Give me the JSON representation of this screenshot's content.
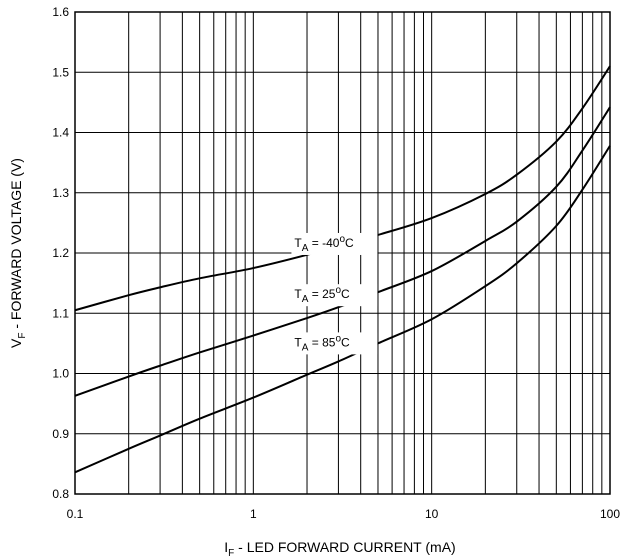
{
  "chart_data": {
    "type": "line",
    "title": "",
    "xlabel": {
      "prefix": "I",
      "sub": "F",
      "rest": " - LED FORWARD CURRENT (mA)"
    },
    "ylabel": {
      "prefix": "V",
      "sub": "F",
      "rest": " - FORWARD VOLTAGE (V)"
    },
    "x_scale": "log",
    "xlim": [
      0.1,
      100
    ],
    "ylim": [
      0.8,
      1.6
    ],
    "x_ticks": [
      {
        "value": 0.1,
        "label": "0.1"
      },
      {
        "value": 1,
        "label": "1"
      },
      {
        "value": 10,
        "label": "10"
      },
      {
        "value": 100,
        "label": "100"
      }
    ],
    "y_ticks": [
      {
        "value": 0.8,
        "label": "0.8"
      },
      {
        "value": 0.9,
        "label": "0.9"
      },
      {
        "value": 1.0,
        "label": "1.0"
      },
      {
        "value": 1.1,
        "label": "1.1"
      },
      {
        "value": 1.2,
        "label": "1.2"
      },
      {
        "value": 1.3,
        "label": "1.3"
      },
      {
        "value": 1.4,
        "label": "1.4"
      },
      {
        "value": 1.5,
        "label": "1.5"
      },
      {
        "value": 1.6,
        "label": "1.6"
      }
    ],
    "grid": true,
    "series": [
      {
        "name_parts": {
          "t": "T",
          "sub": "A",
          "mid": " = -40",
          "sup": "o",
          "unit": "C"
        },
        "label_at": {
          "x": 1.7,
          "y": 1.21
        },
        "x": [
          0.1,
          0.2,
          0.3,
          0.5,
          1,
          2,
          3,
          5,
          10,
          20,
          30,
          50,
          70,
          100
        ],
        "y": [
          1.105,
          1.13,
          1.143,
          1.158,
          1.175,
          1.197,
          1.212,
          1.23,
          1.258,
          1.298,
          1.33,
          1.385,
          1.44,
          1.51
        ]
      },
      {
        "name_parts": {
          "t": "T",
          "sub": "A",
          "mid": " = 25",
          "sup": "o",
          "unit": "C"
        },
        "label_at": {
          "x": 1.7,
          "y": 1.125
        },
        "x": [
          0.1,
          0.2,
          0.3,
          0.5,
          1,
          2,
          3,
          5,
          10,
          20,
          30,
          50,
          70,
          100
        ],
        "y": [
          0.963,
          0.995,
          1.013,
          1.035,
          1.063,
          1.092,
          1.11,
          1.135,
          1.17,
          1.22,
          1.252,
          1.31,
          1.37,
          1.442
        ]
      },
      {
        "name_parts": {
          "t": "T",
          "sub": "A",
          "mid": " = 85",
          "sup": "o",
          "unit": "C"
        },
        "label_at": {
          "x": 1.7,
          "y": 1.045
        },
        "x": [
          0.1,
          0.2,
          0.3,
          0.5,
          1,
          2,
          3,
          5,
          10,
          20,
          30,
          50,
          70,
          100
        ],
        "y": [
          0.836,
          0.875,
          0.897,
          0.925,
          0.96,
          0.998,
          1.02,
          1.05,
          1.09,
          1.145,
          1.183,
          1.245,
          1.305,
          1.378
        ]
      }
    ]
  }
}
